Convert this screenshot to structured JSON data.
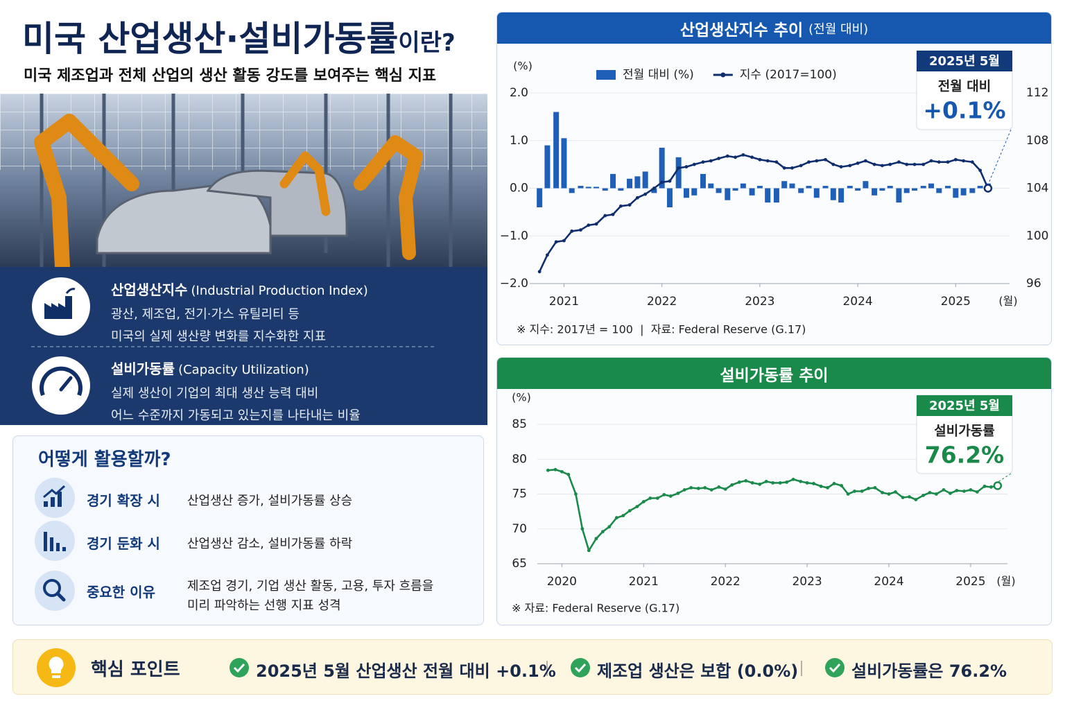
{
  "header": {
    "title": "미국 산업생산·설비가동률",
    "title_suffix": "이란?",
    "subtitle": "미국 제조업과 전체 산업의 생산 활동 강도를 보여주는 핵심 지표"
  },
  "definitions": [
    {
      "title": "산업생산지수",
      "english": "(Industrial Production Index)",
      "lines": [
        "광산, 제조업, 전기·가스 유틸리티 등",
        "미국의 실제 생산량 변화를 지수화한 지표"
      ]
    },
    {
      "title": "설비가동률",
      "english": "(Capacity Utilization)",
      "lines": [
        "실제 생산이 기업의 최대 생산 능력 대비",
        "어느 수준까지 가동되고 있는지를 나타내는 비율"
      ]
    }
  ],
  "usage": {
    "title": "어떻게 활용할까?",
    "rows": [
      {
        "label": "경기 확장 시",
        "lines": [
          "산업생산 증가, 설비가동률 상승"
        ]
      },
      {
        "label": "경기 둔화 시",
        "lines": [
          "산업생산 감소, 설비가동률 하락"
        ]
      },
      {
        "label": "중요한 이유",
        "lines": [
          "제조업 경기, 기업 생산 활동, 고용, 투자 흐름을",
          "미리 파악하는 선행 지표 성격"
        ]
      }
    ]
  },
  "key_points": {
    "title": "핵심 포인트",
    "items": [
      "2025년 5월 산업생산 전월 대비 +0.1%",
      "제조업 생산은 보합 (0.0%)",
      "설비가동률은 76.2%"
    ]
  },
  "chart_data": [
    {
      "type": "combo",
      "title": "산업생산지수 추이",
      "title_note": "(전월 대비)",
      "y_label": "(%)",
      "x_unit": "(월)",
      "footnote": "※ 지수: 2017년 = 100  |  자료: Federal Reserve (G.17)",
      "callout": {
        "date": "2025년 5월",
        "label": "전월 대비",
        "value": "+0.1%"
      },
      "x": [
        2020.75,
        2020.83,
        2020.92,
        2021,
        2021.08,
        2021.17,
        2021.25,
        2021.33,
        2021.42,
        2021.5,
        2021.58,
        2021.67,
        2021.75,
        2021.83,
        2021.92,
        2022,
        2022.08,
        2022.17,
        2022.25,
        2022.33,
        2022.42,
        2022.5,
        2022.58,
        2022.67,
        2022.75,
        2022.83,
        2022.92,
        2023,
        2023.08,
        2023.17,
        2023.25,
        2023.33,
        2023.42,
        2023.5,
        2023.58,
        2023.67,
        2023.75,
        2023.83,
        2023.92,
        2024,
        2024.08,
        2024.17,
        2024.25,
        2024.33,
        2024.42,
        2024.5,
        2024.58,
        2024.67,
        2024.75,
        2024.83,
        2024.92,
        2025,
        2025.08,
        2025.17,
        2025.25,
        2025.33
      ],
      "series": [
        {
          "name": "전월 대비 (%)",
          "type": "bar",
          "color": "#1f5fb8",
          "values": [
            -0.4,
            0.9,
            1.6,
            1.05,
            -0.1,
            0.05,
            0.03,
            0.03,
            -0.05,
            0.3,
            -0.05,
            0.2,
            0.25,
            0.35,
            -0.1,
            0.85,
            -0.4,
            0.65,
            -0.2,
            -0.15,
            0.3,
            0.1,
            -0.1,
            -0.25,
            -0.05,
            0.1,
            -0.15,
            0.05,
            -0.3,
            -0.3,
            0.15,
            0.1,
            -0.1,
            0.05,
            -0.2,
            0.05,
            -0.25,
            -0.3,
            0.05,
            -0.05,
            0.15,
            -0.15,
            -0.05,
            0.05,
            -0.3,
            -0.1,
            -0.05,
            0.05,
            0.1,
            -0.1,
            0.05,
            -0.2,
            -0.15,
            -0.1,
            0.05,
            0.1
          ]
        },
        {
          "name": "지수 (2017=100)",
          "type": "line",
          "axis": "y2",
          "color": "#0f2e6e",
          "values": [
            97.0,
            98.4,
            99.5,
            99.6,
            100.4,
            100.5,
            100.9,
            101.0,
            101.7,
            101.8,
            102.5,
            102.6,
            103.2,
            103.5,
            104.0,
            104.5,
            104.6,
            105.7,
            105.8,
            106.0,
            106.2,
            106.3,
            106.5,
            106.7,
            106.6,
            106.8,
            106.6,
            106.4,
            106.3,
            106.2,
            105.7,
            105.7,
            105.9,
            106.2,
            106.3,
            106.4,
            106.0,
            105.8,
            105.9,
            106.1,
            106.3,
            106.0,
            105.9,
            106.0,
            106.2,
            106.0,
            106.0,
            106.0,
            106.3,
            106.2,
            106.2,
            106.4,
            106.3,
            106.2,
            105.5,
            104.0
          ]
        }
      ],
      "xlim": [
        2020.65,
        2025.55
      ],
      "xticks": [
        2021,
        2022,
        2023,
        2024,
        2025
      ],
      "ylim": [
        -2,
        2
      ],
      "yticks": [
        {
          "value": 2,
          "label": "2.0"
        },
        {
          "value": 1,
          "label": "1.0"
        },
        {
          "value": 0,
          "label": "0.0"
        },
        {
          "value": -1,
          "label": "−1.0"
        },
        {
          "value": -2,
          "label": "−2.0"
        }
      ],
      "y2lim": [
        96,
        112
      ],
      "y2ticks": [
        96,
        100,
        104,
        108,
        112
      ],
      "grid": true,
      "legend": "top"
    },
    {
      "type": "line",
      "title": "설비가동률 추이",
      "y_label": "(%)",
      "x_unit": "(월)",
      "footnote": "※ 자료: Federal Reserve (G.17)",
      "callout": {
        "date": "2025년 5월",
        "label": "설비가동률",
        "value": "76.2%"
      },
      "color": "#1a8a4a",
      "x": [
        2019.83,
        2019.92,
        2020,
        2020.08,
        2020.17,
        2020.25,
        2020.33,
        2020.42,
        2020.5,
        2020.58,
        2020.67,
        2020.75,
        2020.83,
        2020.92,
        2021,
        2021.08,
        2021.17,
        2021.25,
        2021.33,
        2021.42,
        2021.5,
        2021.58,
        2021.67,
        2021.75,
        2021.83,
        2021.92,
        2022,
        2022.08,
        2022.17,
        2022.25,
        2022.33,
        2022.42,
        2022.5,
        2022.58,
        2022.67,
        2022.75,
        2022.83,
        2022.92,
        2023,
        2023.08,
        2023.17,
        2023.25,
        2023.33,
        2023.42,
        2023.5,
        2023.58,
        2023.67,
        2023.75,
        2023.83,
        2023.92,
        2024,
        2024.08,
        2024.17,
        2024.25,
        2024.33,
        2024.42,
        2024.5,
        2024.58,
        2024.67,
        2024.75,
        2024.83,
        2024.92,
        2025,
        2025.08,
        2025.17,
        2025.25,
        2025.33
      ],
      "values": [
        78.4,
        78.5,
        78.2,
        77.8,
        75.0,
        70.0,
        66.9,
        68.6,
        69.6,
        70.3,
        71.6,
        71.9,
        72.6,
        73.2,
        73.9,
        74.4,
        74.4,
        74.9,
        74.7,
        75.1,
        75.6,
        75.9,
        75.8,
        75.9,
        75.6,
        76.0,
        75.7,
        76.3,
        76.7,
        76.9,
        76.6,
        76.4,
        76.8,
        76.6,
        76.6,
        76.7,
        77.1,
        76.8,
        76.6,
        76.5,
        76.1,
        75.9,
        76.5,
        76.2,
        75.0,
        75.4,
        75.4,
        75.8,
        75.9,
        75.2,
        75.0,
        75.3,
        74.5,
        74.6,
        74.2,
        74.8,
        75.2,
        75.0,
        75.6,
        75.1,
        75.5,
        75.4,
        75.6,
        75.3,
        76.1,
        76.0,
        76.2
      ],
      "xlim": [
        2019.7,
        2025.45
      ],
      "xticks": [
        2020,
        2021,
        2022,
        2023,
        2024,
        2025
      ],
      "ylim": [
        65,
        85
      ],
      "yticks": [
        65,
        70,
        75,
        80,
        85
      ],
      "grid": true
    }
  ]
}
